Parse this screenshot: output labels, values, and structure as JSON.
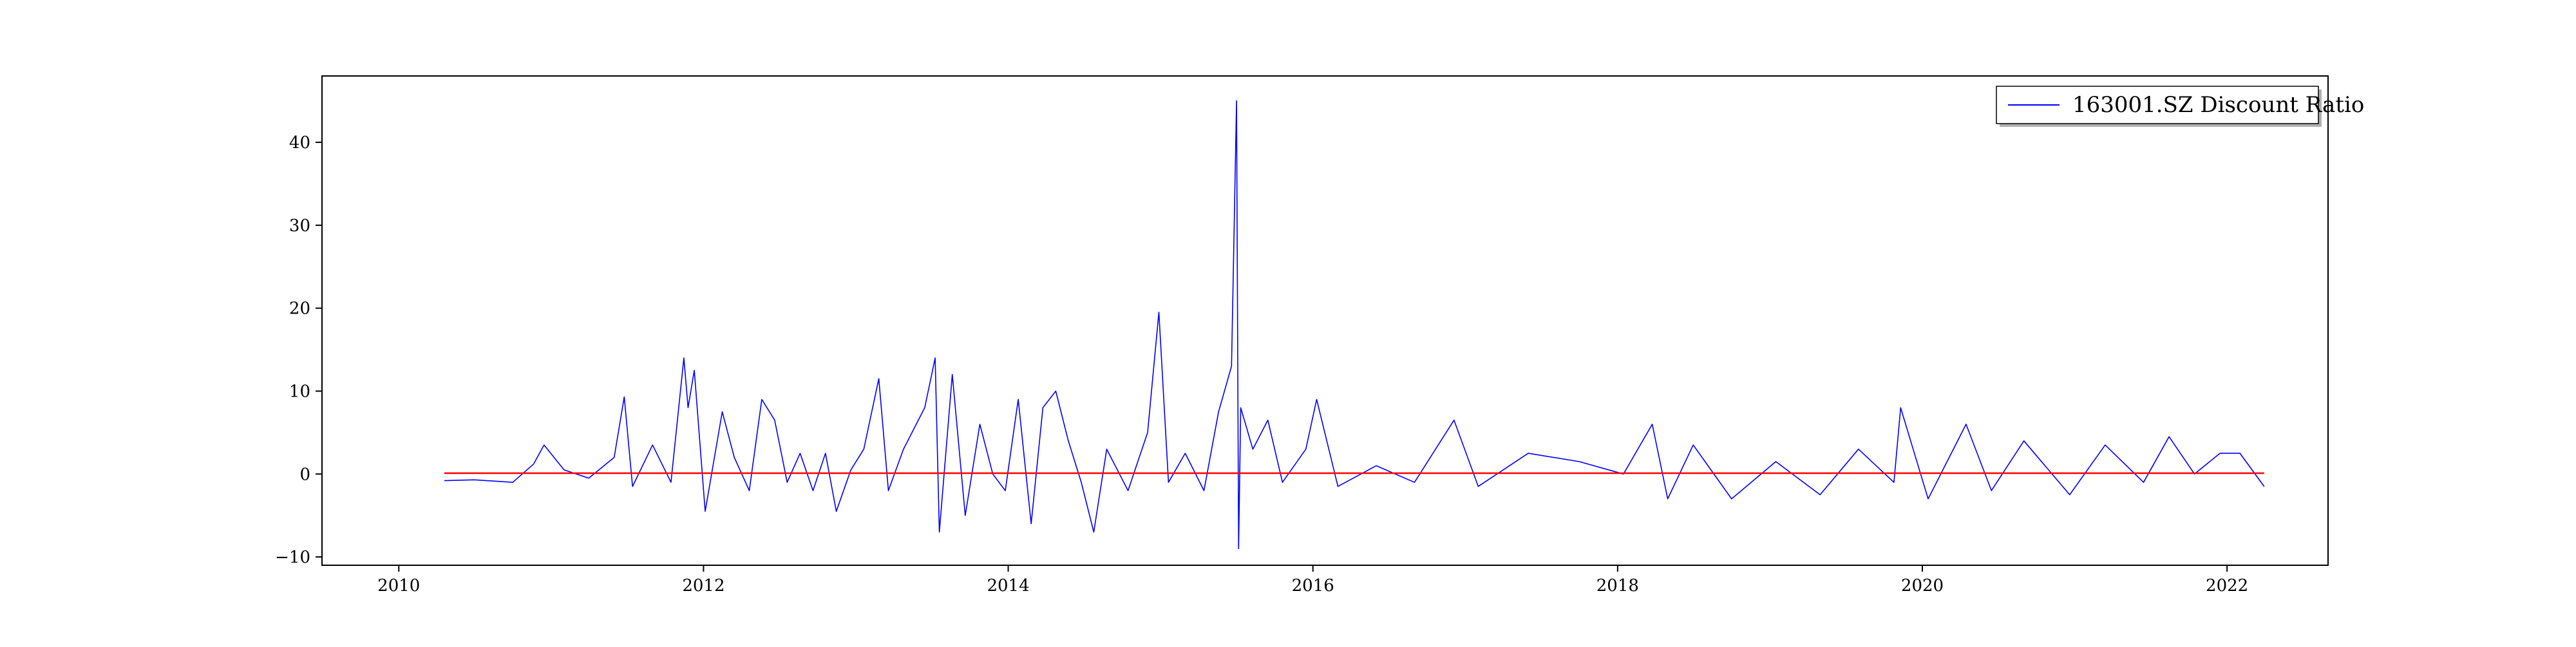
{
  "chart_data": {
    "type": "line",
    "title": "",
    "xlabel": "",
    "ylabel": "",
    "x_range": [
      "2009-07-01",
      "2022-08-31"
    ],
    "ylim": [
      -11,
      48
    ],
    "x_ticks": [
      "2010",
      "2012",
      "2014",
      "2016",
      "2018",
      "2020",
      "2022"
    ],
    "y_ticks": [
      -10,
      0,
      10,
      20,
      30,
      40
    ],
    "grid": false,
    "legend_position": "top-right",
    "series": [
      {
        "name": "163001.SZ Discount Ratio",
        "color": "#0000ff",
        "x": [
          "2010-04-20",
          "2010-07-01",
          "2010-10-01",
          "2010-11-20",
          "2010-12-15",
          "2011-02-01",
          "2011-04-01",
          "2011-06-01",
          "2011-06-25",
          "2011-07-15",
          "2011-09-01",
          "2011-10-15",
          "2011-11-15",
          "2011-11-25",
          "2011-12-10",
          "2012-01-05",
          "2012-02-15",
          "2012-03-15",
          "2012-04-20",
          "2012-05-20",
          "2012-06-20",
          "2012-07-20",
          "2012-08-20",
          "2012-09-20",
          "2012-10-20",
          "2012-11-15",
          "2012-12-20",
          "2013-01-20",
          "2013-02-25",
          "2013-03-20",
          "2013-04-25",
          "2013-06-15",
          "2013-07-10",
          "2013-07-20",
          "2013-08-20",
          "2013-09-20",
          "2013-10-25",
          "2013-11-25",
          "2013-12-25",
          "2014-01-25",
          "2014-02-25",
          "2014-03-25",
          "2014-04-25",
          "2014-05-25",
          "2014-06-25",
          "2014-07-25",
          "2014-08-25",
          "2014-10-15",
          "2014-12-01",
          "2014-12-28",
          "2015-01-20",
          "2015-03-01",
          "2015-04-15",
          "2015-05-20",
          "2015-06-20",
          "2015-07-02",
          "2015-07-07",
          "2015-07-12",
          "2015-08-10",
          "2015-09-15",
          "2015-10-20",
          "2015-12-15",
          "2016-01-10",
          "2016-03-01",
          "2016-06-01",
          "2016-09-01",
          "2016-12-05",
          "2017-02-01",
          "2017-06-01",
          "2017-10-01",
          "2018-01-15",
          "2018-03-25",
          "2018-05-01",
          "2018-07-01",
          "2018-10-01",
          "2019-01-15",
          "2019-05-01",
          "2019-08-01",
          "2019-10-25",
          "2019-11-10",
          "2020-01-15",
          "2020-04-15",
          "2020-06-15",
          "2020-09-01",
          "2020-12-20",
          "2021-03-15",
          "2021-06-15",
          "2021-08-15",
          "2021-10-15",
          "2021-12-15",
          "2022-02-01",
          "2022-03-31"
        ],
        "values": [
          -0.8,
          -0.7,
          -1.0,
          1.2,
          3.5,
          0.5,
          -0.5,
          2.0,
          9.3,
          -1.5,
          3.5,
          -1.0,
          14.0,
          8.0,
          12.5,
          -4.5,
          7.5,
          2.0,
          -2.0,
          9.0,
          6.5,
          -1.0,
          2.5,
          -2.0,
          2.5,
          -4.5,
          0.5,
          3.0,
          11.5,
          -2.0,
          3.0,
          8.0,
          14.0,
          -7.0,
          12.0,
          -5.0,
          6.0,
          0.0,
          -2.0,
          9.0,
          -6.0,
          8.0,
          10.0,
          4.0,
          -1.0,
          -7.0,
          3.0,
          -2.0,
          5.0,
          19.5,
          -1.0,
          2.5,
          -2.0,
          7.5,
          13.0,
          45.0,
          -9.0,
          8.0,
          3.0,
          6.5,
          -1.0,
          3.0,
          9.0,
          -1.5,
          1.0,
          -1.0,
          6.5,
          -1.5,
          2.5,
          1.5,
          0.0,
          6.0,
          -3.0,
          3.5,
          -3.0,
          1.5,
          -2.5,
          3.0,
          -1.0,
          8.0,
          -3.0,
          6.0,
          -2.0,
          4.0,
          -2.5,
          3.5,
          -1.0,
          4.5,
          0.0,
          2.5,
          2.5,
          -1.5
        ]
      },
      {
        "name": "",
        "color": "#ff0000",
        "x": [
          "2010-04-20",
          "2022-03-31"
        ],
        "values": [
          0.1,
          0.1
        ]
      }
    ]
  }
}
